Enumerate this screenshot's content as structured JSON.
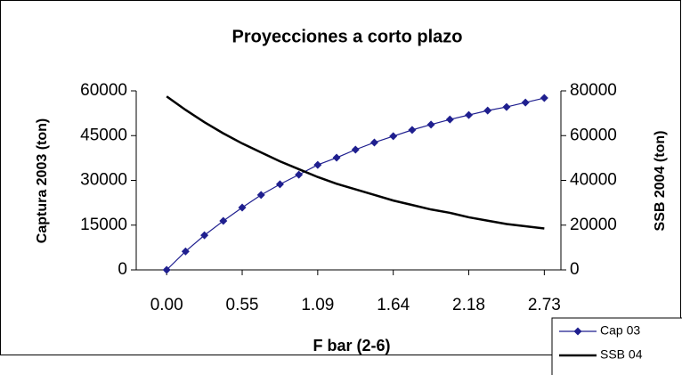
{
  "chart_data": {
    "type": "line",
    "title": "Proyecciones a corto plazo",
    "x_label": "F bar (2-6)",
    "y_label": "Captura 2003 (ton)",
    "y2_label": "SSB 2004 (ton)",
    "x": [
      0,
      0.1365,
      0.273,
      0.4095,
      0.546,
      0.6825,
      0.819,
      0.9555,
      1.092,
      1.2285,
      1.365,
      1.5015,
      1.638,
      1.7745,
      1.911,
      2.0475,
      2.184,
      2.3205,
      2.457,
      2.5935,
      2.73
    ],
    "xlim": [
      -0.22,
      2.85
    ],
    "xticks": [
      {
        "value": 0,
        "label": "0.00"
      },
      {
        "value": 0.546,
        "label": "0.55"
      },
      {
        "value": 1.092,
        "label": "1.09"
      },
      {
        "value": 1.638,
        "label": "1.64"
      },
      {
        "value": 2.184,
        "label": "2.18"
      },
      2.73
    ],
    "ylim": [
      0,
      60000
    ],
    "yticks": [
      0,
      15000,
      30000,
      45000,
      60000
    ],
    "y2lim": [
      0,
      80000
    ],
    "y2ticks": [
      0,
      20000,
      40000,
      60000,
      80000
    ],
    "legend": "lower right",
    "series": [
      {
        "name": "Cap 03",
        "color": "#1f1f8f",
        "marker": "diamond",
        "values": [
          0,
          6200,
          11600,
          16400,
          20900,
          25100,
          28700,
          31900,
          35200,
          37600,
          40300,
          42700,
          44800,
          46900,
          48700,
          50400,
          51900,
          53400,
          54600,
          56100,
          57600
        ]
      },
      {
        "name": "SSB 04",
        "color": "#000000",
        "axis": "y2",
        "values": [
          77500,
          71500,
          66000,
          61000,
          56500,
          52500,
          48500,
          45000,
          41500,
          38500,
          36000,
          33500,
          31000,
          29000,
          27000,
          25500,
          23500,
          22000,
          20500,
          19500,
          18500
        ]
      }
    ]
  }
}
